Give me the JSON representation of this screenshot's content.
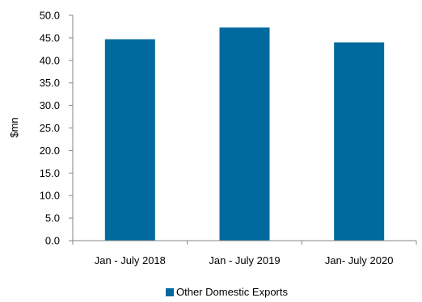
{
  "chart_data": {
    "type": "bar",
    "categories": [
      "Jan - July 2018",
      "Jan - July 2019",
      "Jan- July 2020"
    ],
    "series": [
      {
        "name": "Other Domestic Exports",
        "values": [
          44.7,
          47.3,
          44.0
        ],
        "color": "#006a9e"
      }
    ],
    "ylabel": "$mn",
    "ylim": [
      0,
      50
    ],
    "yticks": [
      "0.0",
      "5.0",
      "10.0",
      "15.0",
      "20.0",
      "25.0",
      "30.0",
      "35.0",
      "40.0",
      "45.0",
      "50.0"
    ],
    "grid": false,
    "legend_position": "bottom"
  }
}
